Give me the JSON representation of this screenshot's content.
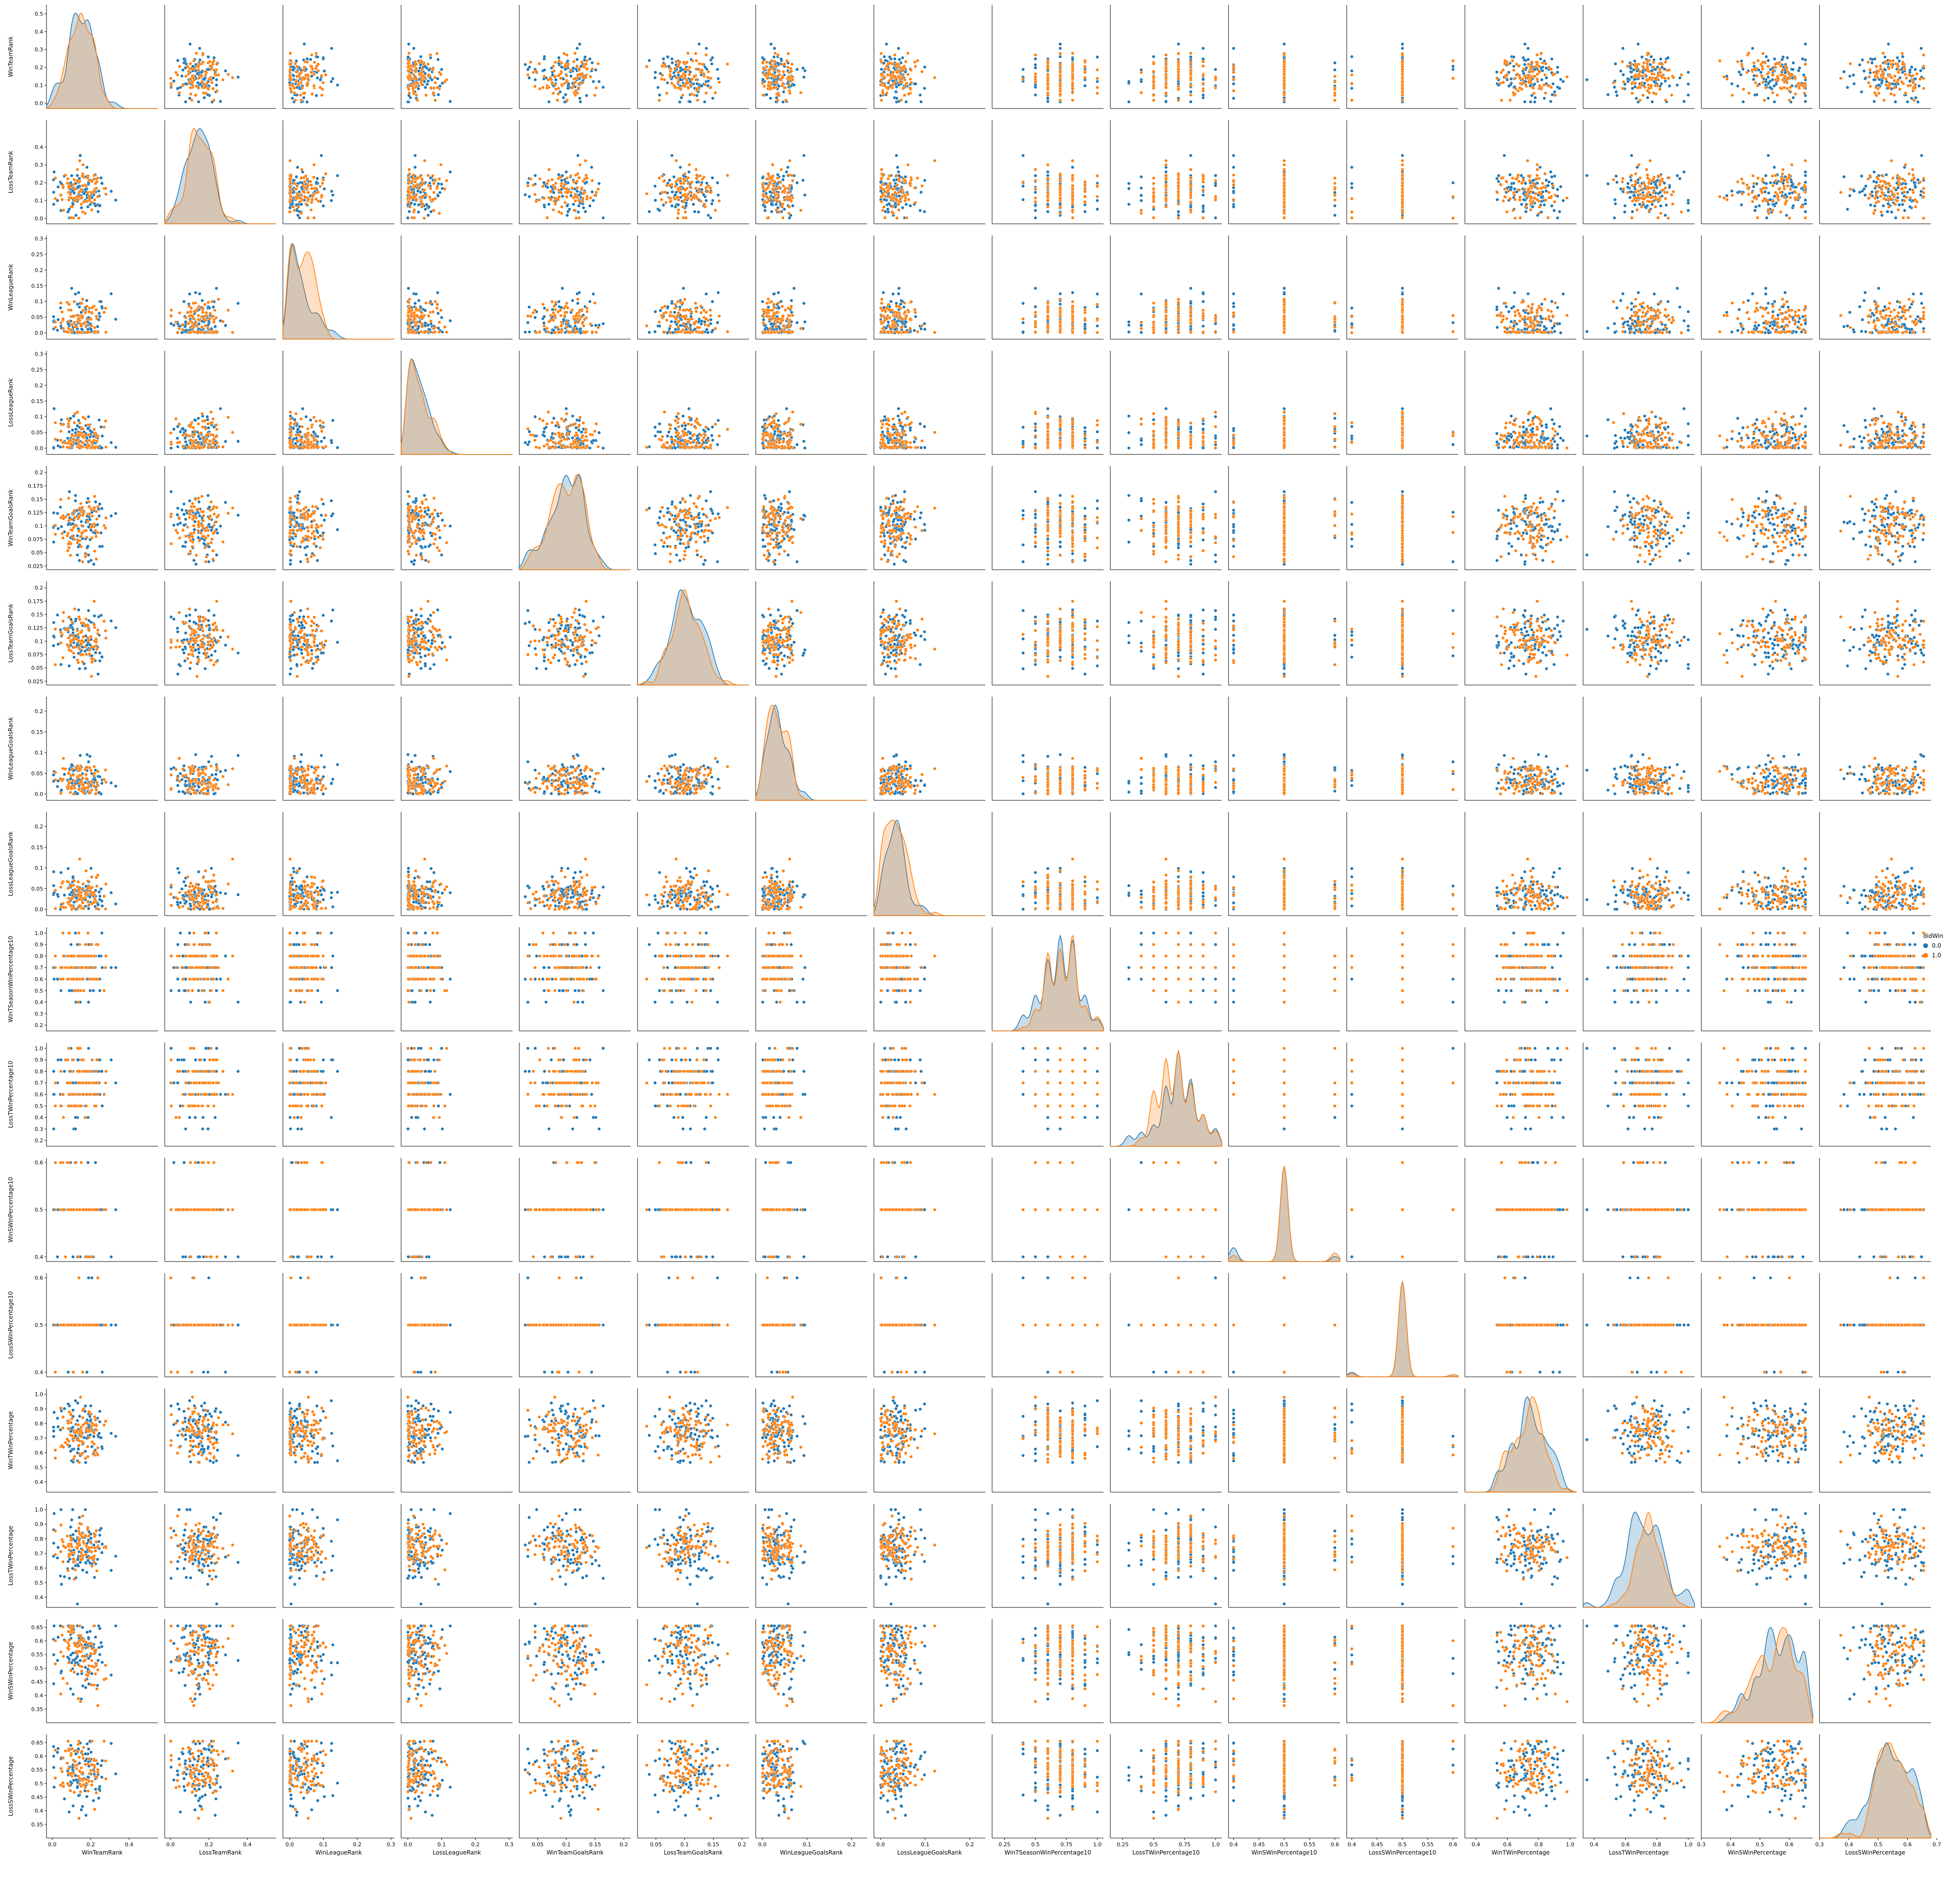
{
  "chart_data": {
    "type": "scatter",
    "variables": [
      {
        "name": "WinTeamRank",
        "range": [
          -0.03,
          0.55
        ],
        "ticks": [
          0.0,
          0.1,
          0.2,
          0.3,
          0.4,
          0.5
        ],
        "xticks": [
          0.0,
          0.2,
          0.4
        ],
        "center": 0.15,
        "spread": 0.065,
        "lo": 0.0,
        "hi": 0.5
      },
      {
        "name": "LossTeamRank",
        "range": [
          -0.03,
          0.55
        ],
        "ticks": [
          0.0,
          0.1,
          0.2,
          0.3,
          0.4
        ],
        "xticks": [
          0.0,
          0.2,
          0.4
        ],
        "center": 0.15,
        "spread": 0.065,
        "lo": 0.0,
        "hi": 0.5
      },
      {
        "name": "WinLeagueRank",
        "range": [
          -0.02,
          0.31
        ],
        "ticks": [
          0.0,
          0.05,
          0.1,
          0.15,
          0.2,
          0.25,
          0.3
        ],
        "xticks": [
          0.0,
          0.1,
          0.2,
          0.3
        ],
        "center": 0.03,
        "spread": 0.04,
        "lo": 0.0,
        "hi": 0.3
      },
      {
        "name": "LossLeagueRank",
        "range": [
          -0.02,
          0.31
        ],
        "ticks": [
          0.0,
          0.05,
          0.1,
          0.15,
          0.2,
          0.25,
          0.3
        ],
        "xticks": [
          0.0,
          0.1,
          0.2,
          0.3
        ],
        "center": 0.03,
        "spread": 0.04,
        "lo": 0.0,
        "hi": 0.3
      },
      {
        "name": "WinTeamGoalsRank",
        "range": [
          0.018,
          0.212
        ],
        "ticks": [
          0.025,
          0.05,
          0.075,
          0.1,
          0.125,
          0.15,
          0.175,
          0.2
        ],
        "xticks": [
          0.05,
          0.1,
          0.15,
          0.2
        ],
        "center": 0.105,
        "spread": 0.027,
        "lo": 0.025,
        "hi": 0.205
      },
      {
        "name": "LossTeamGoalsRank",
        "range": [
          0.018,
          0.212
        ],
        "ticks": [
          0.025,
          0.05,
          0.075,
          0.1,
          0.125,
          0.15,
          0.175,
          0.2
        ],
        "xticks": [
          0.05,
          0.1,
          0.15,
          0.2
        ],
        "center": 0.105,
        "spread": 0.027,
        "lo": 0.025,
        "hi": 0.2
      },
      {
        "name": "WinLeagueGoalsRank",
        "range": [
          -0.015,
          0.235
        ],
        "ticks": [
          0.0,
          0.05,
          0.1,
          0.15,
          0.2
        ],
        "xticks": [
          0.0,
          0.1,
          0.2
        ],
        "center": 0.035,
        "spread": 0.022,
        "lo": 0.0,
        "hi": 0.22
      },
      {
        "name": "LossLeagueGoalsRank",
        "range": [
          -0.015,
          0.235
        ],
        "ticks": [
          0.0,
          0.05,
          0.1,
          0.15,
          0.2
        ],
        "xticks": [
          0.0,
          0.1,
          0.2
        ],
        "center": 0.035,
        "spread": 0.022,
        "lo": 0.0,
        "hi": 0.22
      },
      {
        "name": "WinTSeasonWinPercentage10",
        "range": [
          0.15,
          1.05
        ],
        "ticks": [
          0.2,
          0.3,
          0.4,
          0.5,
          0.6,
          0.7,
          0.8,
          0.9,
          1.0
        ],
        "xticks": [
          0.25,
          0.5,
          0.75,
          1.0
        ],
        "center": 0.7,
        "spread": 0.15,
        "lo": 0.2,
        "hi": 1.0,
        "step": 0.1
      },
      {
        "name": "LossTWinPercentage10",
        "range": [
          0.15,
          1.05
        ],
        "ticks": [
          0.2,
          0.3,
          0.4,
          0.5,
          0.6,
          0.7,
          0.8,
          0.9,
          1.0
        ],
        "xticks": [
          0.25,
          0.5,
          0.75,
          1.0
        ],
        "center": 0.7,
        "spread": 0.15,
        "lo": 0.2,
        "hi": 1.0,
        "step": 0.1
      },
      {
        "name": "WinSWinPercentage10",
        "range": [
          0.39,
          0.61
        ],
        "ticks": [
          0.4,
          0.5,
          0.6
        ],
        "xticks": [
          0.4,
          0.45,
          0.5,
          0.55,
          0.6
        ],
        "center": 0.5,
        "spread": 0.0,
        "lo": 0.4,
        "hi": 0.6,
        "mode": "three"
      },
      {
        "name": "LossSWinPercentage10",
        "range": [
          0.39,
          0.61
        ],
        "ticks": [
          0.4,
          0.5,
          0.6
        ],
        "xticks": [
          0.4,
          0.45,
          0.5,
          0.55,
          0.6
        ],
        "center": 0.5,
        "spread": 0.0,
        "lo": 0.4,
        "hi": 0.6,
        "mode": "three"
      },
      {
        "name": "WinTWinPercentage",
        "range": [
          0.33,
          1.04
        ],
        "ticks": [
          0.4,
          0.5,
          0.6,
          0.7,
          0.8,
          0.9,
          1.0
        ],
        "xticks": [
          0.4,
          0.6,
          0.8,
          1.0
        ],
        "center": 0.74,
        "spread": 0.1,
        "lo": 0.35,
        "hi": 1.0
      },
      {
        "name": "LossTWinPercentage",
        "range": [
          0.33,
          1.04
        ],
        "ticks": [
          0.4,
          0.5,
          0.6,
          0.7,
          0.8,
          0.9,
          1.0
        ],
        "xticks": [
          0.4,
          0.6,
          0.8,
          1.0
        ],
        "center": 0.74,
        "spread": 0.1,
        "lo": 0.35,
        "hi": 1.0
      },
      {
        "name": "WinSWinPercentage",
        "range": [
          0.3,
          0.68
        ],
        "ticks": [
          0.35,
          0.4,
          0.45,
          0.5,
          0.55,
          0.6,
          0.65
        ],
        "xticks": [
          0.3,
          0.4,
          0.5,
          0.6
        ],
        "center": 0.55,
        "spread": 0.07,
        "lo": 0.33,
        "hi": 0.655
      },
      {
        "name": "LossSWinPercentage",
        "range": [
          0.3,
          0.68
        ],
        "ticks": [
          0.35,
          0.4,
          0.45,
          0.5,
          0.55,
          0.6,
          0.65
        ],
        "xticks": [
          0.3,
          0.4,
          0.5,
          0.6,
          0.7
        ],
        "center": 0.55,
        "spread": 0.07,
        "lo": 0.33,
        "hi": 0.655
      }
    ],
    "hue": {
      "title": "didWin",
      "levels": [
        "0.0",
        "1.0"
      ],
      "colors": [
        "#1f77b4",
        "#ff7f0e"
      ]
    },
    "diagonal": "kde",
    "points_per_class": 90
  }
}
